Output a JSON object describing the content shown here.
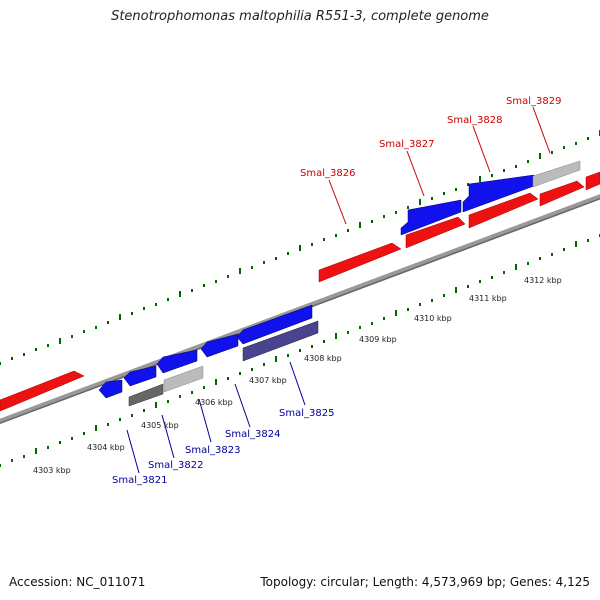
{
  "title": "Stenotrophomonas maltophilia R551-3, complete genome",
  "footer": {
    "accession": "Accession: NC_011071",
    "topology": "Topology: circular; Length: 4,573,969 bp; Genes: 4,125"
  },
  "kbp_labels": [
    "4303 kbp",
    "4304 kbp",
    "4305 kbp",
    "4306 kbp",
    "4307 kbp",
    "4308 kbp",
    "4309 kbp",
    "4310 kbp",
    "4311 kbp",
    "4312 kbp"
  ],
  "genes_top": [
    "Smal_3826",
    "Smal_3827",
    "Smal_3828",
    "Smal_3829"
  ],
  "genes_bottom": [
    "Smal_3821",
    "Smal_3822",
    "Smal_3823",
    "Smal_3824",
    "Smal_3825"
  ],
  "colors": {
    "forward": "#ee1111",
    "reverse": "#1111ee",
    "reverse_dark": "#4a4490",
    "gray": "#bbbbbb",
    "dark_gray": "#666666",
    "top_label": "#cc0000",
    "bottom_label": "#000099",
    "tick": "#006600",
    "backbone": "#888888"
  }
}
